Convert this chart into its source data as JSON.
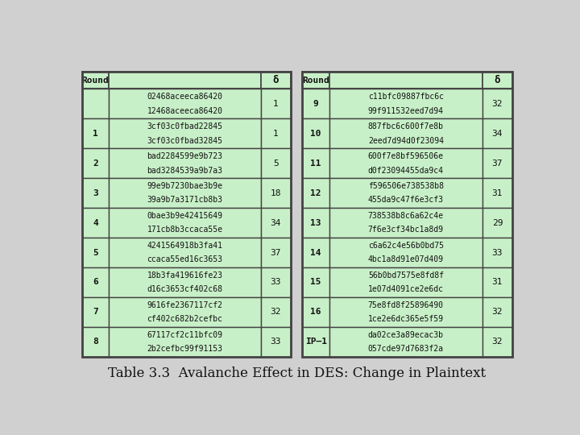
{
  "title": "Table 3.3  Avalanche Effect in DES: Change in Plaintext",
  "fig_bg": "#d0d0d0",
  "cell_bg": "#c8f0c8",
  "header_bg": "#c8f0c8",
  "border_color": "#444444",
  "text_color": "#111111",
  "left_table": {
    "rows": [
      {
        "round": "",
        "line1": "02468aceeca86420",
        "line2": "12468aceeca86420",
        "delta": "1"
      },
      {
        "round": "1",
        "line1": "3cf03c0fbad22845",
        "line2": "3cf03c0fbad32845",
        "delta": "1"
      },
      {
        "round": "2",
        "line1": "bad2284599e9b723",
        "line2": "bad3284539a9b7a3",
        "delta": "5"
      },
      {
        "round": "3",
        "line1": "99e9b7230bae3b9e",
        "line2": "39a9b7a3171cb8b3",
        "delta": "18"
      },
      {
        "round": "4",
        "line1": "0bae3b9e42415649",
        "line2": "171cb8b3ccaca55e",
        "delta": "34"
      },
      {
        "round": "5",
        "line1": "4241564918b3fa41",
        "line2": "ccaca55ed16c3653",
        "delta": "37"
      },
      {
        "round": "6",
        "line1": "18b3fa419616fe23",
        "line2": "d16c3653cf402c68",
        "delta": "33"
      },
      {
        "round": "7",
        "line1": "9616fe2367117cf2",
        "line2": "cf402c682b2cefbc",
        "delta": "32"
      },
      {
        "round": "8",
        "line1": "67117cf2c11bfc09",
        "line2": "2b2cefbc99f91153",
        "delta": "33"
      }
    ]
  },
  "right_table": {
    "rows": [
      {
        "round": "9",
        "line1": "c11bfc09887fbc6c",
        "line2": "99f911532eed7d94",
        "delta": "32"
      },
      {
        "round": "10",
        "line1": "887fbc6c600f7e8b",
        "line2": "2eed7d94d0f23094",
        "delta": "34"
      },
      {
        "round": "11",
        "line1": "600f7e8bf596506e",
        "line2": "d0f23094455da9c4",
        "delta": "37"
      },
      {
        "round": "12",
        "line1": "f596506e738538b8",
        "line2": "455da9c47f6e3cf3",
        "delta": "31"
      },
      {
        "round": "13",
        "line1": "738538b8c6a62c4e",
        "line2": "7f6e3cf34bc1a8d9",
        "delta": "29"
      },
      {
        "round": "14",
        "line1": "c6a62c4e56b0bd75",
        "line2": "4bc1a8d91e07d409",
        "delta": "33"
      },
      {
        "round": "15",
        "line1": "56b0bd7575e8fd8f",
        "line2": "1e07d4091ce2e6dc",
        "delta": "31"
      },
      {
        "round": "16",
        "line1": "75e8fd8f25896490",
        "line2": "1ce2e6dc365e5f59",
        "delta": "32"
      },
      {
        "round": "IP–1",
        "line1": "da02ce3a89ecac3b",
        "line2": "057cde97d7683f2a",
        "delta": "32"
      }
    ]
  }
}
